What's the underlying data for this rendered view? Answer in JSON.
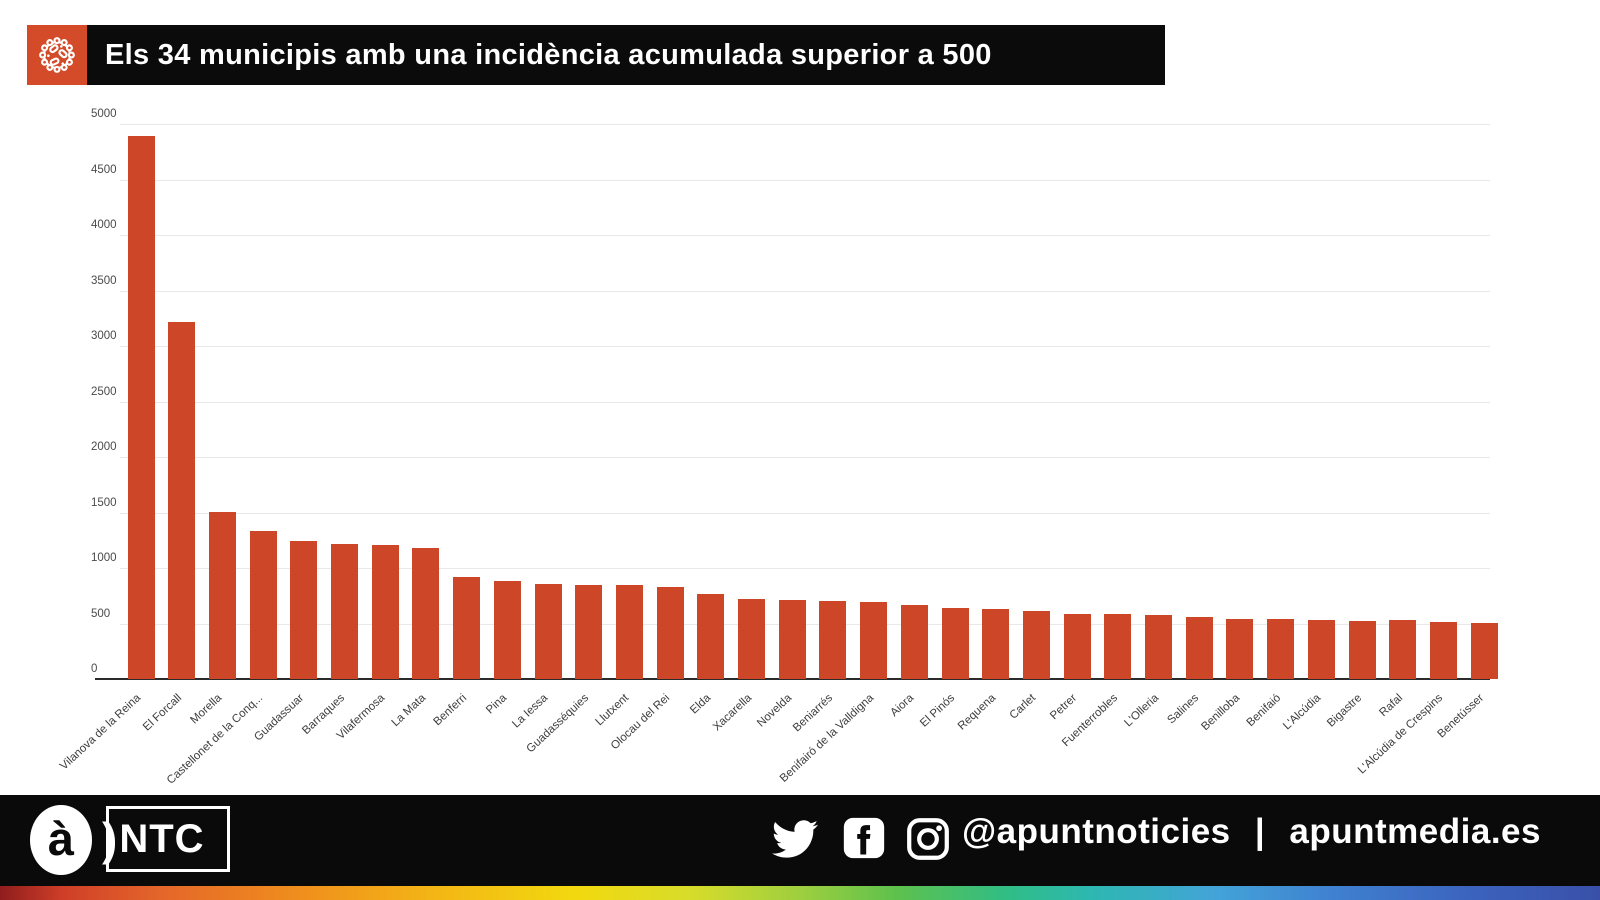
{
  "header": {
    "title": "Els 34 municipis amb una incidència acumulada superior a 500",
    "accent_color": "#d34b28",
    "bar_background": "#0b0b0b"
  },
  "chart_data": {
    "type": "bar",
    "title": "Els 34 municipis amb una incidència acumulada superior a 500",
    "xlabel": "",
    "ylabel": "",
    "ylim": [
      0,
      5000
    ],
    "ytick_step": 500,
    "grid": true,
    "bar_color": "#cc4627",
    "categories": [
      "Vilanova de la Reina",
      "El Forcall",
      "Morella",
      "Castellonet de la Conq...",
      "Guadassuar",
      "Barraques",
      "Vilafermosa",
      "La Mata",
      "Benferri",
      "Pina",
      "La Iessa",
      "Guadasséquies",
      "Llutxent",
      "Olocau del Rei",
      "Elda",
      "Xacarella",
      "Novelda",
      "Beniarrés",
      "Benifairó de la Valldigna",
      "Aiora",
      "El Pinós",
      "Requena",
      "Carlet",
      "Petrer",
      "Fuenterrobles",
      "L'Olleria",
      "Salines",
      "Benilloba",
      "Benifaió",
      "L'Alcúdia",
      "Bigastre",
      "Rafal",
      "L'Alcúdia de Crespins",
      "Benetússer"
    ],
    "values": [
      4890,
      3220,
      1505,
      1330,
      1240,
      1215,
      1205,
      1180,
      920,
      885,
      860,
      845,
      845,
      830,
      765,
      725,
      710,
      705,
      690,
      665,
      640,
      630,
      615,
      590,
      590,
      575,
      555,
      545,
      540,
      535,
      525,
      530,
      515,
      505
    ]
  },
  "footer": {
    "logo_a": "à",
    "logo_paren": ")",
    "logo_ntc": "NTC",
    "handle": "@apuntnoticies",
    "separator": "|",
    "website": "apuntmedia.es",
    "icons": [
      "twitter-icon",
      "facebook-icon",
      "instagram-icon"
    ]
  }
}
